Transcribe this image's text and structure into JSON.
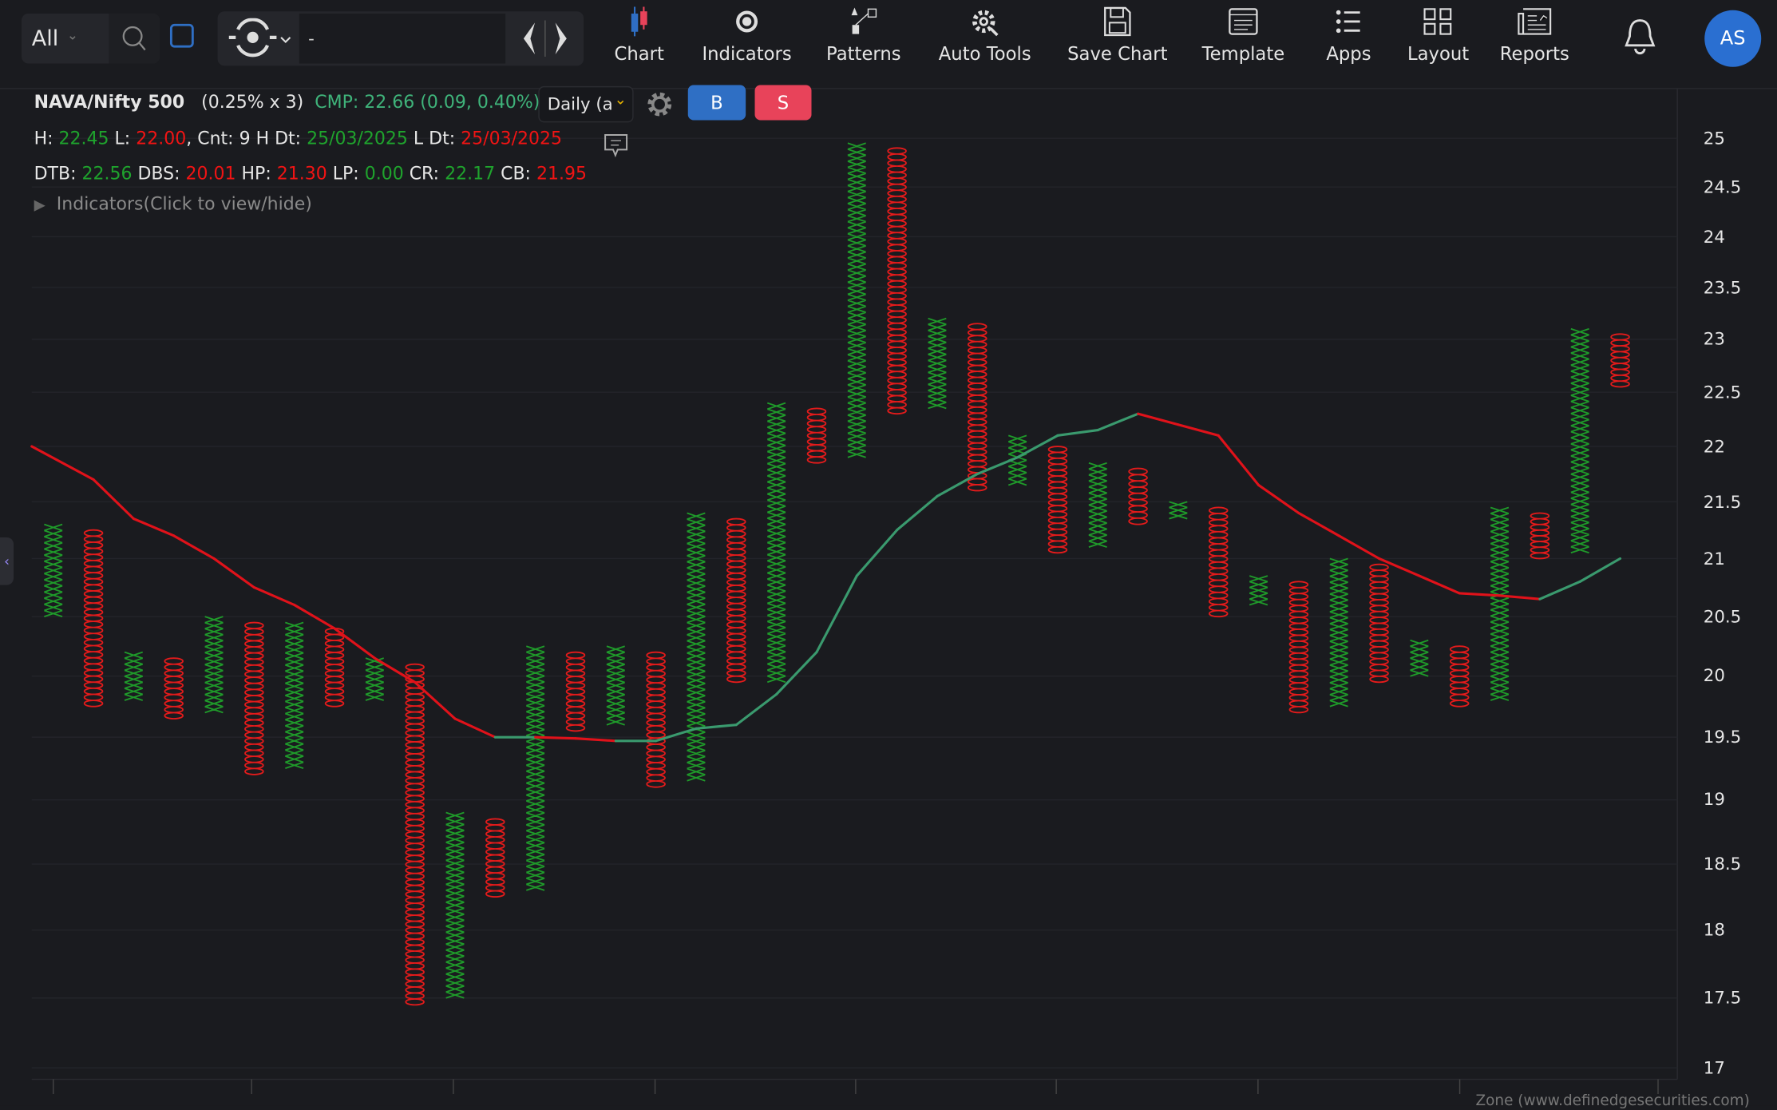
{
  "toolbar": {
    "filter": "All",
    "symbol_input": "-",
    "items": [
      {
        "label": "Chart",
        "icon": "candlestick-icon"
      },
      {
        "label": "Indicators",
        "icon": "indicators-icon"
      },
      {
        "label": "Patterns",
        "icon": "patterns-icon"
      },
      {
        "label": "Auto Tools",
        "icon": "auto-tools-gear-icon"
      },
      {
        "label": "Save Chart",
        "icon": "floppy-disk-icon"
      },
      {
        "label": "Template",
        "icon": "template-icon"
      },
      {
        "label": "Apps",
        "icon": "list-icon"
      },
      {
        "label": "Layout",
        "icon": "grid-layout-icon"
      },
      {
        "label": "Reports",
        "icon": "newspaper-icon"
      }
    ],
    "avatar": "AS"
  },
  "info": {
    "symbol": "NAVA/Nifty 500",
    "box": "(0.25% x 3)",
    "cmp": "CMP: 22.66 (0.09, 0.40%)",
    "interval": "Daily (a",
    "buy": "B",
    "sell": "S",
    "h_label": "H: ",
    "h": "22.45",
    "l_label": " L: ",
    "l": "22.00",
    "cnt": ", Cnt: 9 H Dt: ",
    "h_dt": "25/03/2025",
    "l_dt_label": " L Dt: ",
    "l_dt": "25/03/2025",
    "dtb_label": "DTB: ",
    "dtb": "22.56",
    "dbs_label": " DBS: ",
    "dbs": "20.01",
    "hp_label": " HP: ",
    "hp": "21.30",
    "lp_label": " LP: ",
    "lp": "0.00",
    "cr_label": " CR: ",
    "cr": "22.17",
    "cb_label": " CB: ",
    "cb": "21.95",
    "indicators_toggle": "Indicators(Click to view/hide)"
  },
  "footer": "Zone (www.definedgesecurities.com)",
  "colors": {
    "x": "#1f9a2a",
    "o": "#e31b1b",
    "ma_up": "#3a9a6e",
    "ma_down": "#e0121a",
    "accent": "#2f6fc4",
    "sell": "#e8435a"
  },
  "chart_data": {
    "type": "point-and-figure",
    "box_size_pct": 0.25,
    "reversal": 3,
    "y_scale": "log",
    "ylim": [
      17,
      25
    ],
    "yticks": [
      "25",
      "24.5",
      "24",
      "23.5",
      "23",
      "22.5",
      "22",
      "21.5",
      "21",
      "20.5",
      "20",
      "19.5",
      "19",
      "18.5",
      "18",
      "17.5",
      "17"
    ],
    "grid": true,
    "columns": [
      {
        "t": "X",
        "high": 21.3,
        "low": 20.5
      },
      {
        "t": "O",
        "high": 21.25,
        "low": 19.75
      },
      {
        "t": "X",
        "high": 20.2,
        "low": 19.8
      },
      {
        "t": "O",
        "high": 20.15,
        "low": 19.65
      },
      {
        "t": "X",
        "high": 20.5,
        "low": 19.7
      },
      {
        "t": "O",
        "high": 20.45,
        "low": 19.2
      },
      {
        "t": "X",
        "high": 20.45,
        "low": 19.25
      },
      {
        "t": "O",
        "high": 20.4,
        "low": 19.75
      },
      {
        "t": "X",
        "high": 20.15,
        "low": 19.8
      },
      {
        "t": "O",
        "high": 20.1,
        "low": 17.45
      },
      {
        "t": "X",
        "high": 18.9,
        "low": 17.5
      },
      {
        "t": "O",
        "high": 18.85,
        "low": 18.25
      },
      {
        "t": "X",
        "high": 20.25,
        "low": 18.3
      },
      {
        "t": "O",
        "high": 20.2,
        "low": 19.55
      },
      {
        "t": "X",
        "high": 20.25,
        "low": 19.6
      },
      {
        "t": "O",
        "high": 20.2,
        "low": 19.1
      },
      {
        "t": "X",
        "high": 21.4,
        "low": 19.15
      },
      {
        "t": "O",
        "high": 21.35,
        "low": 19.95
      },
      {
        "t": "X",
        "high": 22.4,
        "low": 19.95
      },
      {
        "t": "O",
        "high": 22.35,
        "low": 21.85
      },
      {
        "t": "X",
        "high": 24.95,
        "low": 21.9
      },
      {
        "t": "O",
        "high": 24.9,
        "low": 22.3
      },
      {
        "t": "X",
        "high": 23.2,
        "low": 22.35
      },
      {
        "t": "O",
        "high": 23.15,
        "low": 21.6
      },
      {
        "t": "X",
        "high": 22.1,
        "low": 21.65
      },
      {
        "t": "O",
        "high": 22.0,
        "low": 21.05
      },
      {
        "t": "X",
        "high": 21.85,
        "low": 21.1
      },
      {
        "t": "O",
        "high": 21.8,
        "low": 21.3
      },
      {
        "t": "X",
        "high": 21.5,
        "low": 21.35
      },
      {
        "t": "O",
        "high": 21.45,
        "low": 20.5
      },
      {
        "t": "X",
        "high": 20.85,
        "low": 20.6
      },
      {
        "t": "O",
        "high": 20.8,
        "low": 19.7
      },
      {
        "t": "X",
        "high": 21.0,
        "low": 19.75
      },
      {
        "t": "O",
        "high": 20.95,
        "low": 19.95
      },
      {
        "t": "X",
        "high": 20.3,
        "low": 20.0
      },
      {
        "t": "O",
        "high": 20.25,
        "low": 19.75
      },
      {
        "t": "X",
        "high": 21.45,
        "low": 19.8
      },
      {
        "t": "O",
        "high": 21.4,
        "low": 21.0
      },
      {
        "t": "X",
        "high": 23.1,
        "low": 21.05
      },
      {
        "t": "O",
        "high": 23.05,
        "low": 22.55
      }
    ],
    "moving_average": [
      22.0,
      21.7,
      21.35,
      21.2,
      21.0,
      20.75,
      20.6,
      20.4,
      20.15,
      19.95,
      19.65,
      19.5,
      19.5,
      19.49,
      19.47,
      19.47,
      19.57,
      19.6,
      19.85,
      20.2,
      20.85,
      21.25,
      21.55,
      21.75,
      21.9,
      22.1,
      22.15,
      22.3,
      22.2,
      22.1,
      21.65,
      21.4,
      21.2,
      21.0,
      20.85,
      20.7,
      20.68,
      20.65,
      20.8,
      21.0
    ]
  }
}
